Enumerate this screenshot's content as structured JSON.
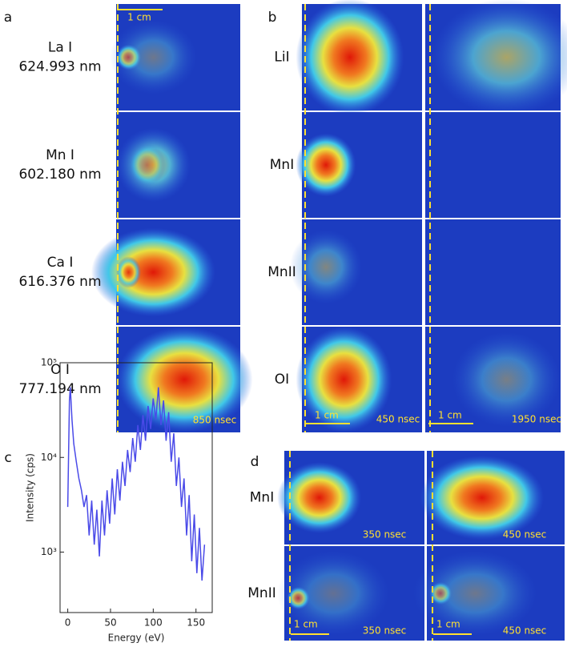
{
  "panel_a": {
    "label": "a",
    "rows": [
      {
        "element": "La I",
        "wavelength": "624.993 nm"
      },
      {
        "element": "Mn I",
        "wavelength": "602.180 nm"
      },
      {
        "element": "Ca I",
        "wavelength": "616.376 nm"
      },
      {
        "element": "O I",
        "wavelength": "777.194 nm"
      }
    ],
    "scale_bar": "1 cm",
    "time": "850 nsec"
  },
  "panel_b": {
    "label": "b",
    "rows": [
      "LiI",
      "MnI",
      "MnII",
      "OI"
    ],
    "columns": [
      {
        "scale_bar": "1 cm",
        "time": "450 nsec"
      },
      {
        "scale_bar": "1 cm",
        "time": "1950 nsec"
      }
    ]
  },
  "panel_c": {
    "label": "c"
  },
  "chart_data": {
    "type": "line",
    "xlabel": "Energy (eV)",
    "ylabel": "Intensity (cps)",
    "color": "#4a4ae8",
    "log_y": true,
    "x": [
      0,
      2,
      3,
      5,
      7,
      10,
      13,
      16,
      19,
      22,
      25,
      28,
      31,
      34,
      37,
      40,
      43,
      46,
      49,
      52,
      55,
      58,
      61,
      64,
      67,
      70,
      73,
      76,
      79,
      82,
      85,
      88,
      91,
      94,
      97,
      100,
      103,
      106,
      109,
      112,
      115,
      118,
      121,
      124,
      127,
      130,
      133,
      136,
      139,
      142,
      145,
      148,
      151,
      154,
      157,
      160
    ],
    "values": [
      3000,
      40000,
      55000,
      25000,
      14000,
      9000,
      6000,
      4500,
      3000,
      4000,
      1500,
      3500,
      1200,
      2800,
      900,
      3500,
      1500,
      4500,
      2000,
      6000,
      2500,
      7500,
      3500,
      9000,
      5000,
      12000,
      7000,
      16000,
      9000,
      22000,
      12000,
      28000,
      15000,
      35000,
      20000,
      42000,
      25000,
      55000,
      22000,
      40000,
      15000,
      30000,
      9000,
      18000,
      5000,
      10000,
      3000,
      6000,
      1500,
      4000,
      800,
      2500,
      600,
      1800,
      500,
      1200
    ],
    "xlim": [
      -9,
      169
    ],
    "xticks": [
      0,
      50,
      100,
      150
    ],
    "ylim": [
      230,
      100000
    ],
    "yticks": [
      {
        "value": 1000,
        "label": "10³"
      },
      {
        "value": 10000,
        "label": "10⁴"
      },
      {
        "value": 100000,
        "label": "10⁵"
      }
    ]
  },
  "panel_d": {
    "label": "d",
    "rows": [
      "MnI",
      "MnII"
    ],
    "times": [
      [
        "350 nsec",
        "450 nsec"
      ],
      [
        "350 nsec",
        "450 nsec"
      ]
    ],
    "scale_bar": "1 cm"
  }
}
